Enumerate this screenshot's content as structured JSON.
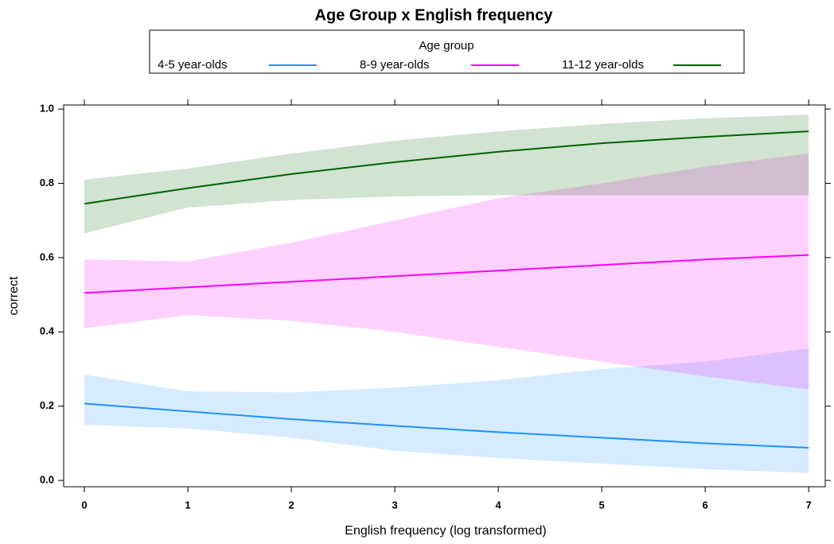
{
  "chart_data": {
    "type": "line",
    "title": "Age Group x English frequency",
    "legend_title": "Age group",
    "xlabel": "English frequency (log transformed)",
    "ylabel": "correct",
    "x": [
      0,
      1,
      2,
      3,
      4,
      5,
      6,
      7
    ],
    "xlim": [
      -0.2,
      7.16
    ],
    "ylim": [
      -0.017,
      1.011
    ],
    "xticks": [
      0,
      1,
      2,
      3,
      4,
      5,
      6,
      7
    ],
    "yticks": [
      {
        "value": 0,
        "label": "0.0"
      },
      0.2,
      0.4,
      0.6,
      0.8,
      {
        "value": 1,
        "label": "1.0"
      }
    ],
    "series": [
      {
        "name": "4-5 year-olds",
        "color": "#1e90ff",
        "values": [
          0.207,
          0.186,
          0.165,
          0.147,
          0.13,
          0.115,
          0.1,
          0.088
        ],
        "upper": [
          0.285,
          0.24,
          0.237,
          0.25,
          0.27,
          0.3,
          0.32,
          0.355
        ],
        "lower": [
          0.15,
          0.14,
          0.115,
          0.08,
          0.06,
          0.045,
          0.03,
          0.02
        ]
      },
      {
        "name": "8-9 year-olds",
        "color": "#ff00ff",
        "values": [
          0.505,
          0.52,
          0.535,
          0.55,
          0.565,
          0.58,
          0.595,
          0.607
        ],
        "upper": [
          0.595,
          0.59,
          0.64,
          0.7,
          0.76,
          0.8,
          0.845,
          0.88
        ],
        "lower": [
          0.41,
          0.445,
          0.43,
          0.4,
          0.36,
          0.32,
          0.28,
          0.245
        ]
      },
      {
        "name": "11-12 year-olds",
        "color": "#006400",
        "values": [
          0.745,
          0.787,
          0.825,
          0.857,
          0.885,
          0.908,
          0.925,
          0.94
        ],
        "upper": [
          0.81,
          0.84,
          0.88,
          0.915,
          0.94,
          0.96,
          0.975,
          0.985
        ],
        "lower": [
          0.665,
          0.735,
          0.755,
          0.765,
          0.768,
          0.768,
          0.768,
          0.768
        ]
      }
    ]
  }
}
